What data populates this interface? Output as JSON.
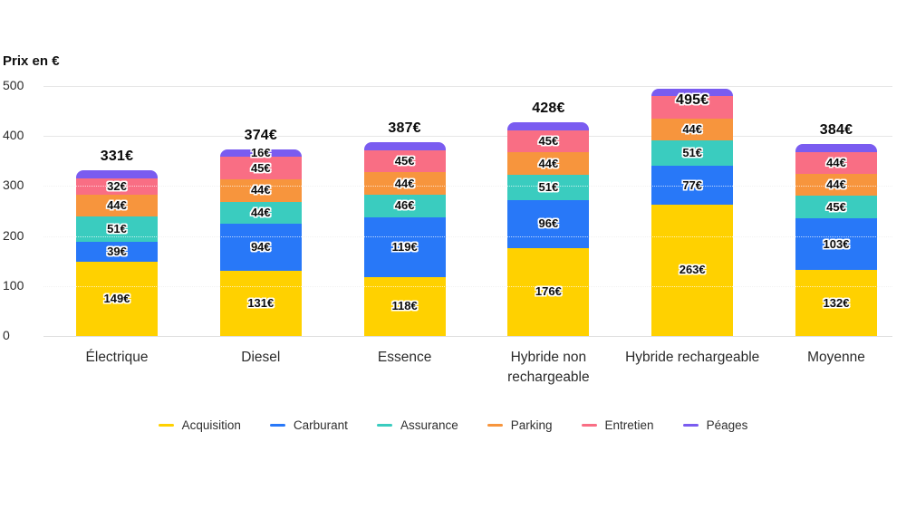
{
  "title": "Prix en €",
  "chart_data": {
    "type": "bar",
    "stacked": true,
    "title": "Prix en €",
    "ylabel": "Prix en €",
    "xlabel": "",
    "ylim": [
      0,
      500
    ],
    "yticks": [
      0,
      100,
      200,
      300,
      400,
      500
    ],
    "grid": true,
    "legend_position": "bottom",
    "categories": [
      "Électrique",
      "Diesel",
      "Essence",
      "Hybride non rechargeable",
      "Hybride rechargeable",
      "Moyenne"
    ],
    "totals": [
      331,
      374,
      387,
      428,
      495,
      384
    ],
    "total_labels": [
      "331€",
      "374€",
      "387€",
      "428€",
      "495€",
      "384€"
    ],
    "series": [
      {
        "name": "Acquisition",
        "color": "#FFD100",
        "values": [
          149,
          131,
          118,
          176,
          263,
          132
        ],
        "labels": [
          "149€",
          "131€",
          "118€",
          "176€",
          "263€",
          "132€"
        ]
      },
      {
        "name": "Carburant",
        "color": "#2878F8",
        "values": [
          39,
          94,
          119,
          96,
          77,
          103
        ],
        "labels": [
          "39€",
          "94€",
          "119€",
          "96€",
          "77€",
          "103€"
        ]
      },
      {
        "name": "Assurance",
        "color": "#3ACCBF",
        "values": [
          51,
          44,
          46,
          51,
          51,
          45
        ],
        "labels": [
          "51€",
          "44€",
          "46€",
          "51€",
          "51€",
          "45€"
        ]
      },
      {
        "name": "Parking",
        "color": "#F7953D",
        "values": [
          44,
          44,
          44,
          44,
          44,
          44
        ],
        "labels": [
          "44€",
          "44€",
          "44€",
          "44€",
          "44€",
          "44€"
        ]
      },
      {
        "name": "Entretien",
        "color": "#F96E84",
        "values": [
          32,
          45,
          45,
          45,
          45,
          44
        ],
        "labels": [
          "32€",
          "45€",
          "45€",
          "45€",
          null,
          "44€"
        ]
      },
      {
        "name": "Péages",
        "color": "#7A5CF0",
        "values": [
          16,
          16,
          15,
          16,
          15,
          16
        ],
        "labels": [
          null,
          "16€",
          null,
          null,
          null,
          null
        ]
      }
    ]
  },
  "legend": {
    "items": [
      {
        "label": "Acquisition",
        "color": "#FFD100"
      },
      {
        "label": "Carburant",
        "color": "#2878F8"
      },
      {
        "label": "Assurance",
        "color": "#3ACCBF"
      },
      {
        "label": "Parking",
        "color": "#F7953D"
      },
      {
        "label": "Entretien",
        "color": "#F96E84"
      },
      {
        "label": "Péages",
        "color": "#7A5CF0"
      }
    ]
  }
}
